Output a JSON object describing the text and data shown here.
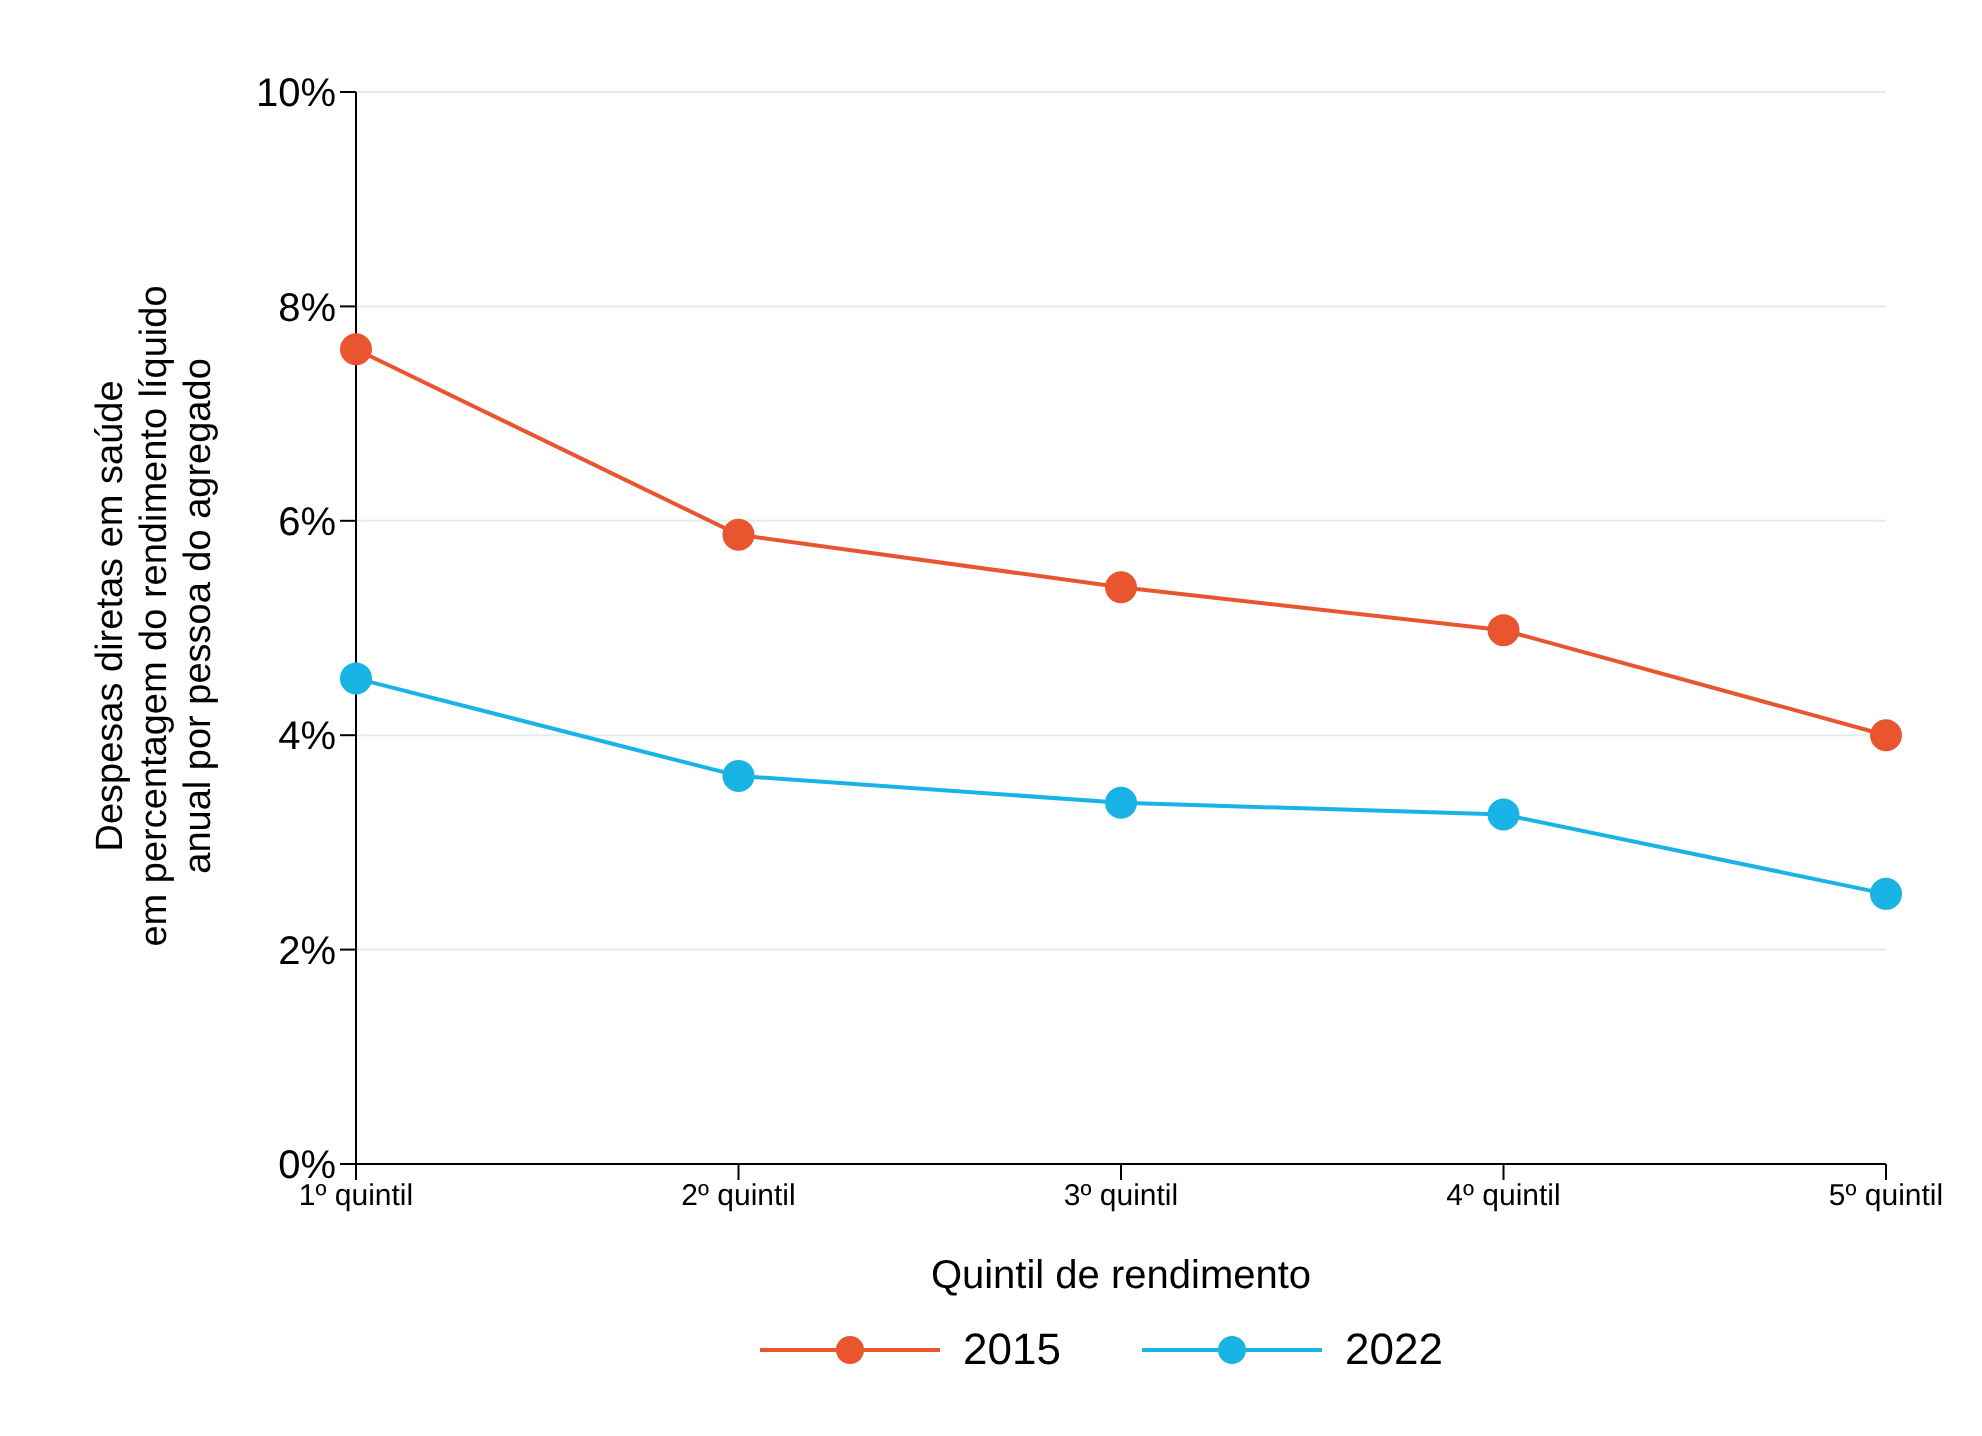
{
  "chart_data": {
    "type": "line",
    "xlabel": "Quintil de rendimento",
    "ylabel": "Despesas diretas em saúde\nem percentagem do rendimento líquido\nanual por pessoa do agregado",
    "categories": [
      "1º quintil",
      "2º quintil",
      "3º quintil",
      "4º quintil",
      "5º quintil"
    ],
    "series": [
      {
        "name": "2015",
        "color": "#e8552f",
        "values": [
          7.6,
          5.87,
          5.38,
          4.98,
          4.0
        ]
      },
      {
        "name": "2022",
        "color": "#1ab3e6",
        "values": [
          4.53,
          3.62,
          3.37,
          3.26,
          2.52
        ]
      }
    ],
    "ylim": [
      0,
      10
    ],
    "yticks": [
      {
        "value": 0,
        "label": "0%"
      },
      {
        "value": 2,
        "label": "2%"
      },
      {
        "value": 4,
        "label": "4%"
      },
      {
        "value": 6,
        "label": "6%"
      },
      {
        "value": 8,
        "label": "8%"
      },
      {
        "value": 10,
        "label": "10%"
      }
    ],
    "grid": "y",
    "legend": "bottom",
    "marker": "circle",
    "line_style": "solid"
  }
}
